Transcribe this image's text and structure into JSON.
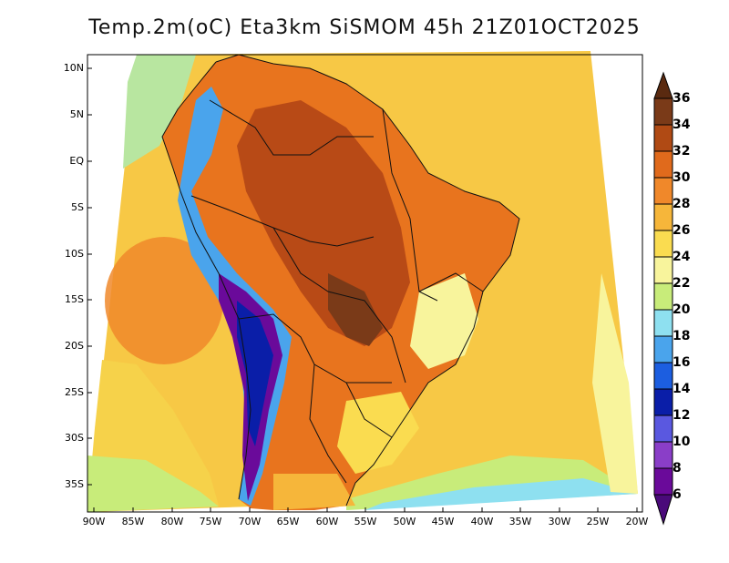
{
  "title": "Temp.2m(oC) Eta3km SiSMOM 45h 21Z01OCT2025",
  "map": {
    "lat_labels": [
      "10N",
      "5N",
      "EQ",
      "5S",
      "10S",
      "15S",
      "20S",
      "25S",
      "30S",
      "35S"
    ],
    "lon_labels": [
      "90W",
      "85W",
      "80W",
      "75W",
      "70W",
      "65W",
      "60W",
      "55W",
      "50W",
      "45W",
      "40W",
      "35W",
      "30W",
      "25W",
      "20W"
    ],
    "lat_range": [
      "12N",
      "38S"
    ],
    "lon_range": [
      "91W",
      "19W"
    ]
  },
  "colorbar": {
    "unit": "oC",
    "labels": [
      "36",
      "34",
      "32",
      "30",
      "28",
      "26",
      "24",
      "22",
      "20",
      "18",
      "16",
      "14",
      "12",
      "10",
      "8",
      "6"
    ],
    "colors": {
      "above_36": "#5a2a10",
      "34_36": "#7a3a18",
      "32_34": "#b04a14",
      "30_32": "#e06a1c",
      "28_30": "#f0882a",
      "26_28": "#f6b63a",
      "24_26": "#fadc50",
      "22_24": "#f8f49c",
      "20_22": "#c8ec7a",
      "18_20": "#8ee0f0",
      "16_18": "#4aa4ec",
      "14_16": "#1c5ee0",
      "12_14": "#0a1ea8",
      "10_12": "#5a58e0",
      "8_10": "#8a3ec8",
      "6_8": "#6a0a9a",
      "below_6": "#4a0a7a"
    }
  }
}
